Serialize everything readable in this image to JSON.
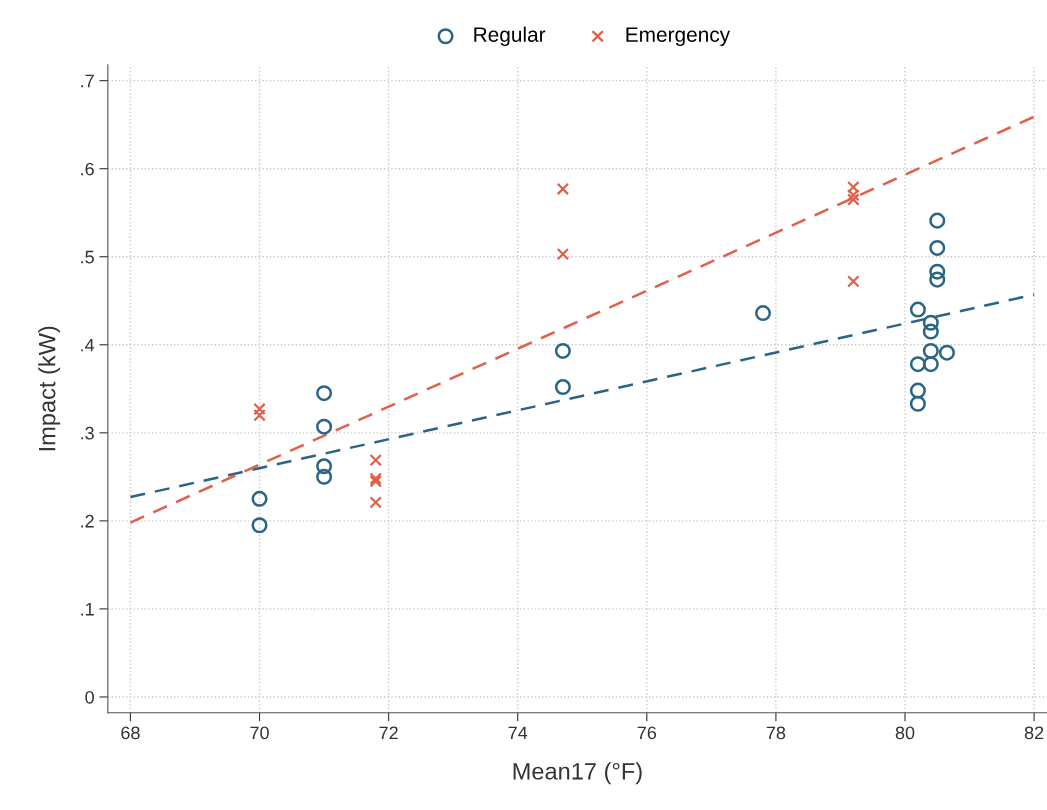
{
  "chart_data": {
    "type": "scatter",
    "xlabel": "Mean17 (°F)",
    "ylabel": "Impact (kW)",
    "xlim": [
      67.65,
      82.2
    ],
    "xticks": [
      68,
      70,
      72,
      74,
      76,
      78,
      80,
      82
    ],
    "ylim": [
      -0.018,
      0.718
    ],
    "yticks": [
      0,
      {
        "value": 0.1,
        "label": ".1"
      },
      {
        "value": 0.2,
        "label": ".2"
      },
      {
        "value": 0.3,
        "label": ".3"
      },
      {
        "value": 0.4,
        "label": ".4"
      },
      {
        "value": 0.5,
        "label": ".5"
      },
      {
        "value": 0.6,
        "label": ".6"
      },
      {
        "value": 0.7,
        "label": ".7"
      }
    ],
    "grid": true,
    "legend": "top",
    "series": [
      {
        "name": "Regular",
        "color": "#2a6584",
        "marker": "circle",
        "x": [
          70,
          70,
          71,
          71,
          71,
          71,
          74.7,
          74.7,
          77.8,
          80.2,
          80.2,
          80.2,
          80.2,
          80.4,
          80.4,
          80.4,
          80.4,
          80.5,
          80.5,
          80.5,
          80.5,
          80.65
        ],
        "values": [
          0.225,
          0.195,
          0.345,
          0.307,
          0.262,
          0.25,
          0.393,
          0.352,
          0.436,
          0.44,
          0.378,
          0.348,
          0.333,
          0.425,
          0.415,
          0.393,
          0.378,
          0.541,
          0.51,
          0.483,
          0.474,
          0.391
        ]
      },
      {
        "name": "Emergency",
        "color": "#e0604a",
        "marker": "cross",
        "x": [
          70,
          70,
          71.8,
          71.8,
          71.8,
          71.8,
          74.7,
          74.7,
          79.2,
          79.2,
          79.2,
          79.2
        ],
        "values": [
          0.327,
          0.32,
          0.269,
          0.248,
          0.245,
          0.221,
          0.577,
          0.503,
          0.579,
          0.57,
          0.565,
          0.472
        ]
      },
      {
        "type": "line",
        "color": "#2a6584",
        "line_style": "dashed",
        "marker": "none",
        "x": [
          68,
          82
        ],
        "values": [
          0.227,
          0.457
        ]
      },
      {
        "type": "line",
        "color": "#e0604a",
        "line_style": "dashed",
        "marker": "none",
        "x": [
          68,
          82
        ],
        "values": [
          0.198,
          0.659
        ]
      }
    ]
  }
}
